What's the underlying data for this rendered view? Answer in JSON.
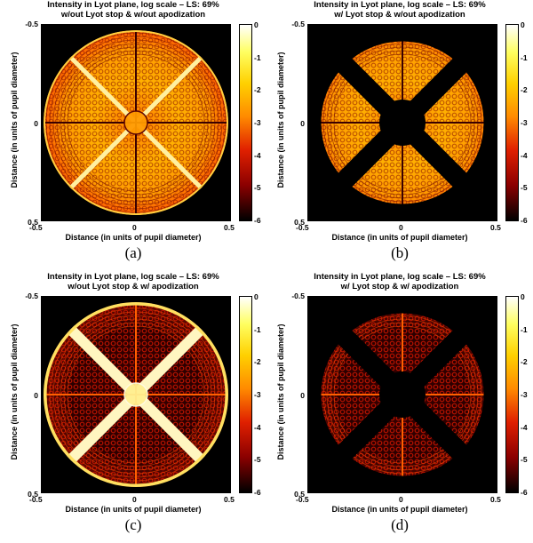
{
  "panels": [
    {
      "title_line1": "Intensity in Lyot plane, log scale – LS: 69%",
      "title_line2": "w/out Lyot stop & w/out apodization",
      "caption": "(a)",
      "variant": "no-stop-no-apod"
    },
    {
      "title_line1": "Intensity in Lyot plane, log scale – LS: 69%",
      "title_line2": "w/ Lyot stop & w/out apodization",
      "caption": "(b)",
      "variant": "stop-no-apod"
    },
    {
      "title_line1": "Intensity in Lyot plane, log scale – LS: 69%",
      "title_line2": "w/out Lyot stop & w/ apodization",
      "caption": "(c)",
      "variant": "no-stop-apod"
    },
    {
      "title_line1": "Intensity in Lyot plane, log scale – LS: 69%",
      "title_line2": "w/ Lyot stop & w/ apodization",
      "caption": "(d)",
      "variant": "stop-apod"
    }
  ],
  "axes": {
    "xlabel": "Distance (in units of pupil diameter)",
    "ylabel": "Distance (in units of pupil diameter)",
    "x_ticks": [
      "-0.5",
      "0",
      "0.5"
    ],
    "y_ticks": [
      "-0.5",
      "0",
      "0.5"
    ]
  },
  "colorbar": {
    "ticks": [
      "0",
      "-1",
      "-2",
      "-3",
      "-4",
      "-5",
      "-6"
    ],
    "colormap": "hot",
    "scale": "log"
  },
  "chart_data": {
    "type": "heatmap",
    "panel_count": 4,
    "x_range": [
      -0.5,
      0.5
    ],
    "y_range": [
      -0.5,
      0.5
    ],
    "value_range": [
      -6,
      0
    ],
    "colormap": "hot"
  }
}
